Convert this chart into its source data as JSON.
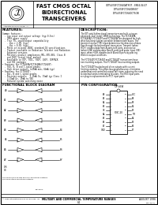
{
  "title_main": "FAST CMOS OCTAL\nBIDIRECTIONAL\nTRANSCEIVERS",
  "part_line1": "IDT54/74FCT2640ATSO7 - EN54-04-07",
  "part_line2": "IDT54/74FCT2640BSO7",
  "part_line3": "IDT54/74FCT2640CTSOB",
  "company_text": "Integrated Device Technology, Inc.",
  "features_title": "FEATURES:",
  "description_title": "DESCRIPTION:",
  "func_block_title": "FUNCTIONAL BLOCK DIAGRAM",
  "pin_config_title": "PIN CONFIGURATION",
  "military_text": "MILITARY AND COMMERCIAL TEMPERATURE RANGES",
  "date_text": "AUGUST 1996",
  "page_num": "8-1",
  "footer_doc": "DSC-6(7.0)",
  "footer_copyright": "© 1996 Integrated Device Technology, Inc.",
  "features_lines": [
    "Common features:",
    "  - Low input and output voltage (typ 0.5ns)",
    "  - CMOS power supply",
    "  - True TTL input/output compatibility",
    "    - Von > 2.0V (typ)",
    "    - Voi < 0.8V (typ)",
    "  - Meets or exceeds JEDEC standard 18 specifications",
    "  - Product available in Radiation Tolerant and Radiation",
    "    Enhanced versions",
    "  - Military product compliances MIL-STD-883, Class B",
    "    and DSCC-listed (dual market)",
    "  - Available in DIP, SOIC, SSOP, QSOP, CERPACK",
    "    and SOI packages",
    "• Features for FCT2640A/FCT2640B/FCT2640T:",
    "  - 50U, R, B and C-speed grades",
    "  - High drive outputs (±15mA min, 64mA typ)",
    "• Features for FCT2640T:",
    "  - Bac, B and C-speed grades",
    "  - Resistor outputs:  1.15mA Ov, 15mA typ Class I",
    "    3.15mA Ov, 15mA to 56U",
    "  - Reduced system switching noise"
  ],
  "desc_lines": [
    "The IDT octal bidirectional transceivers are built using an",
    "advanced, dual metal CMOS technology. The FCT2640A,",
    "FCT2640AT, FCT2640T and FCT2640AT are designed for high-",
    "drive bus-keep system operation between both buses. The",
    "transmit/receive (T/R) input determines the direction of data",
    "flow through the bidirectional transceiver. Transmit (when",
    "HIGH) enables data from A ports to B ports, and receive",
    "(when LOW) enables data from B ports to A ports. Input (OE)",
    "input, when HIGH, disables both A and B ports by placing",
    "them in output conditions.",
    "",
    "The FCT2640T/FCT2640T and FCT2640T transceivers have",
    "non-inverting outputs. The FCT2640T has inverting outputs.",
    "",
    "The FCT2640T has balanced drive outputs with current",
    "limiting resistors. This offers less ground bounce, eliminates",
    "undershoot and controlled output fall times, reducing the need",
    "to external series terminating resistors. The R/O input ports",
    "are plug-in replacements for FCT input parts."
  ],
  "port_a_labels": [
    "A0",
    "A1",
    "A2",
    "A3",
    "A4",
    "A5",
    "A6",
    "A7"
  ],
  "port_b_labels": [
    "B0",
    "B1",
    "B2",
    "B3",
    "B4",
    "B5",
    "B6",
    "B7"
  ],
  "pin_labels_left": [
    "A0",
    "A1",
    "A2",
    "A3",
    "OE",
    "A4",
    "A5",
    "A6",
    "A7",
    "GND"
  ],
  "pin_labels_right": [
    "VCC",
    "B0",
    "B1",
    "B2",
    "B3",
    "T/R",
    "B4",
    "B5",
    "B6",
    "B7"
  ],
  "bg_color": "#ffffff",
  "border_color": "#000000",
  "text_color": "#000000"
}
